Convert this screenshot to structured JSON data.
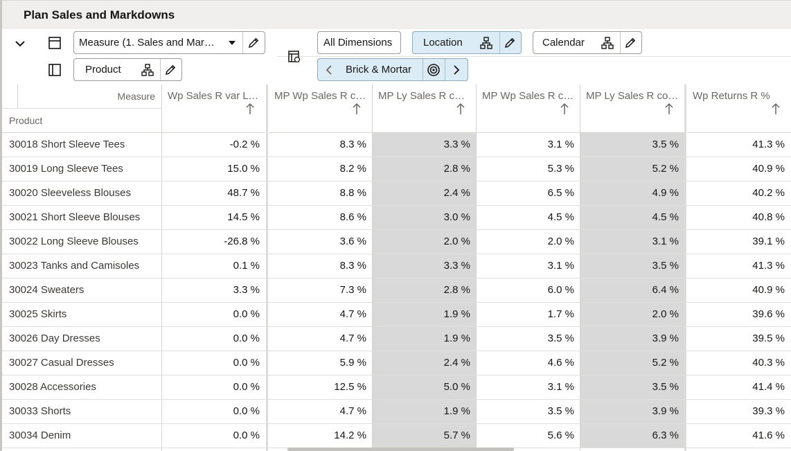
{
  "page": {
    "title": "Plan Sales and Markdowns"
  },
  "toolbar": {
    "measure_label": "Measure (1. Sales and Mar…",
    "product_label": "Product",
    "all_dimensions_label": "All Dimensions",
    "location_label": "Location",
    "calendar_label": "Calendar",
    "brick_mortar_label": "Brick & Mortar"
  },
  "grid": {
    "corner_measure": "Measure",
    "corner_product": "Product",
    "columns": [
      "Wp Sales R var Ly…",
      "MP Wp Sales R c…",
      "MP Ly Sales R co…",
      "MP Wp Sales R c…",
      "MP Ly Sales R co…",
      "Wp Returns R %"
    ],
    "rows": [
      {
        "name": "30018 Short Sleeve Tees",
        "values": [
          "-0.2 %",
          "8.3 %",
          "3.3 %",
          "3.1 %",
          "3.5 %",
          "41.3 %"
        ]
      },
      {
        "name": "30019 Long Sleeve Tees",
        "values": [
          "15.0 %",
          "8.2 %",
          "2.8 %",
          "5.3 %",
          "5.2 %",
          "40.9 %"
        ]
      },
      {
        "name": "30020 Sleeveless Blouses",
        "values": [
          "48.7 %",
          "8.8 %",
          "2.4 %",
          "6.5 %",
          "4.9 %",
          "40.2 %"
        ]
      },
      {
        "name": "30021 Short Sleeve Blouses",
        "values": [
          "14.5 %",
          "8.6 %",
          "3.0 %",
          "4.5 %",
          "4.5 %",
          "40.8 %"
        ]
      },
      {
        "name": "30022 Long Sleeve Blouses",
        "values": [
          "-26.8 %",
          "3.6 %",
          "2.0 %",
          "2.0 %",
          "3.1 %",
          "39.1 %"
        ]
      },
      {
        "name": "30023 Tanks and Camisoles",
        "values": [
          "0.1 %",
          "8.3 %",
          "3.3 %",
          "3.1 %",
          "3.5 %",
          "41.3 %"
        ]
      },
      {
        "name": "30024 Sweaters",
        "values": [
          "3.3 %",
          "7.3 %",
          "2.8 %",
          "6.0 %",
          "6.4 %",
          "40.9 %"
        ]
      },
      {
        "name": "30025 Skirts",
        "values": [
          "0.0 %",
          "4.7 %",
          "1.9 %",
          "1.7 %",
          "2.0 %",
          "39.6 %"
        ]
      },
      {
        "name": "30026 Day Dresses",
        "values": [
          "0.0 %",
          "4.7 %",
          "1.9 %",
          "3.5 %",
          "3.9 %",
          "39.5 %"
        ]
      },
      {
        "name": "30027 Casual Dresses",
        "values": [
          "0.0 %",
          "5.9 %",
          "2.4 %",
          "4.6 %",
          "5.2 %",
          "40.3 %"
        ]
      },
      {
        "name": "30028 Accessories",
        "values": [
          "0.0 %",
          "12.5 %",
          "5.0 %",
          "3.1 %",
          "3.5 %",
          "41.4 %"
        ]
      },
      {
        "name": "30033 Shorts",
        "values": [
          "0.0 %",
          "4.7 %",
          "1.9 %",
          "3.5 %",
          "3.9 %",
          "39.3 %"
        ]
      },
      {
        "name": "30034 Denim",
        "values": [
          "0.0 %",
          "14.2 %",
          "5.7 %",
          "5.6 %",
          "6.3 %",
          "41.6 %"
        ]
      }
    ]
  },
  "icons": {
    "collapse": "chevron-down-icon",
    "layout_rows": "layout-rows-icon",
    "layout_columns": "layout-columns-icon",
    "edit": "pencil-icon",
    "hierarchy": "hierarchy-icon",
    "dropdown": "caret-down-icon",
    "pivot": "pivot-table-icon",
    "target": "target-icon",
    "prev": "chevron-left-icon",
    "next": "chevron-right-icon",
    "sort": "arrow-up-icon"
  },
  "colors": {
    "title_bar_bg": "#f1efed",
    "active_chip_bg": "#dcecf6",
    "shaded_cell_bg": "#d9d9d9"
  }
}
